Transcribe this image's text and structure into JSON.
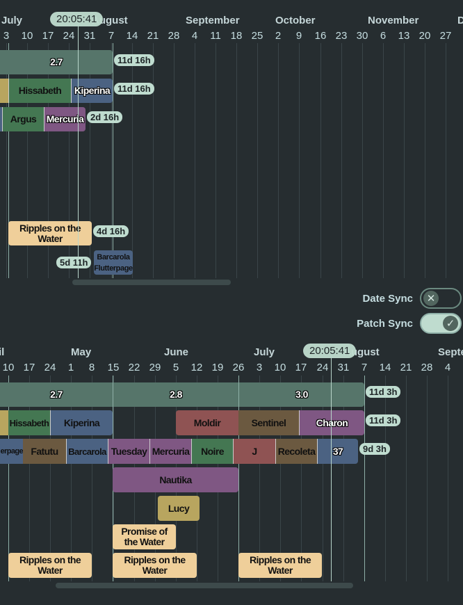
{
  "top_timeline": {
    "months": [
      "July",
      "August",
      "September",
      "October",
      "November",
      "D"
    ],
    "days": [
      "3",
      "10",
      "17",
      "24",
      "31",
      "7",
      "14",
      "21",
      "28",
      "4",
      "11",
      "18",
      "25",
      "2",
      "9",
      "16",
      "23",
      "30",
      "6",
      "13",
      "20",
      "27"
    ],
    "clock": "20:05:41",
    "rows": [
      {
        "items": [
          "2.7"
        ],
        "badge": "11d 16h"
      },
      {
        "items": [
          "",
          "Hissabeth",
          "Kiperina"
        ],
        "badge": "11d 16h"
      },
      {
        "items": [
          "",
          "Argus",
          "Mercuria"
        ],
        "badge": "2d 16h"
      },
      {
        "items": [
          "Ripples on the Water"
        ],
        "badge": "4d 16h"
      },
      {
        "items": [
          "Barcarola Flutterpage"
        ],
        "badge": "5d 11h"
      }
    ]
  },
  "controls": {
    "date_sync": {
      "label": "Date Sync",
      "on": false
    },
    "patch_sync": {
      "label": "Patch Sync",
      "on": true
    }
  },
  "bottom_timeline": {
    "months": [
      "il",
      "May",
      "June",
      "July",
      "August",
      "Septe"
    ],
    "days": [
      "10",
      "17",
      "24",
      "1",
      "8",
      "15",
      "22",
      "29",
      "5",
      "12",
      "19",
      "26",
      "3",
      "10",
      "17",
      "24",
      "31",
      "7",
      "14",
      "21",
      "28",
      "4"
    ],
    "clock": "20:05:41",
    "rows": [
      {
        "items": [
          "2.7",
          "2.8",
          "3.0"
        ],
        "badge": "11d 3h"
      },
      {
        "items": [
          "",
          "Hissabeth",
          "Kiperina",
          "Moldir",
          "Sentinel",
          "Charon"
        ],
        "badge": "11d 3h"
      },
      {
        "items": [
          "erpage",
          "Fatutu",
          "Barcarola",
          "Tuesday",
          "Mercuria",
          "Noire",
          "J",
          "Recoleta",
          "37"
        ],
        "badge": "9d 3h"
      },
      {
        "items": [
          "Nautika"
        ]
      },
      {
        "items": [
          "Lucy"
        ]
      },
      {
        "items": [
          "Promise of the Water"
        ]
      },
      {
        "items": [
          "Ripples on the Water",
          "Ripples on the Water",
          "Ripples on the Water"
        ]
      }
    ]
  },
  "colors": {
    "background": "#262d30",
    "patch": "#56756a",
    "tan": "#b8a55f",
    "green": "#447752",
    "blue": "#4b6282",
    "purple": "#7f5783",
    "red": "#8f5353",
    "brown": "#6b5940",
    "peach": "#efcf9a",
    "badge": "#bfdccf"
  }
}
